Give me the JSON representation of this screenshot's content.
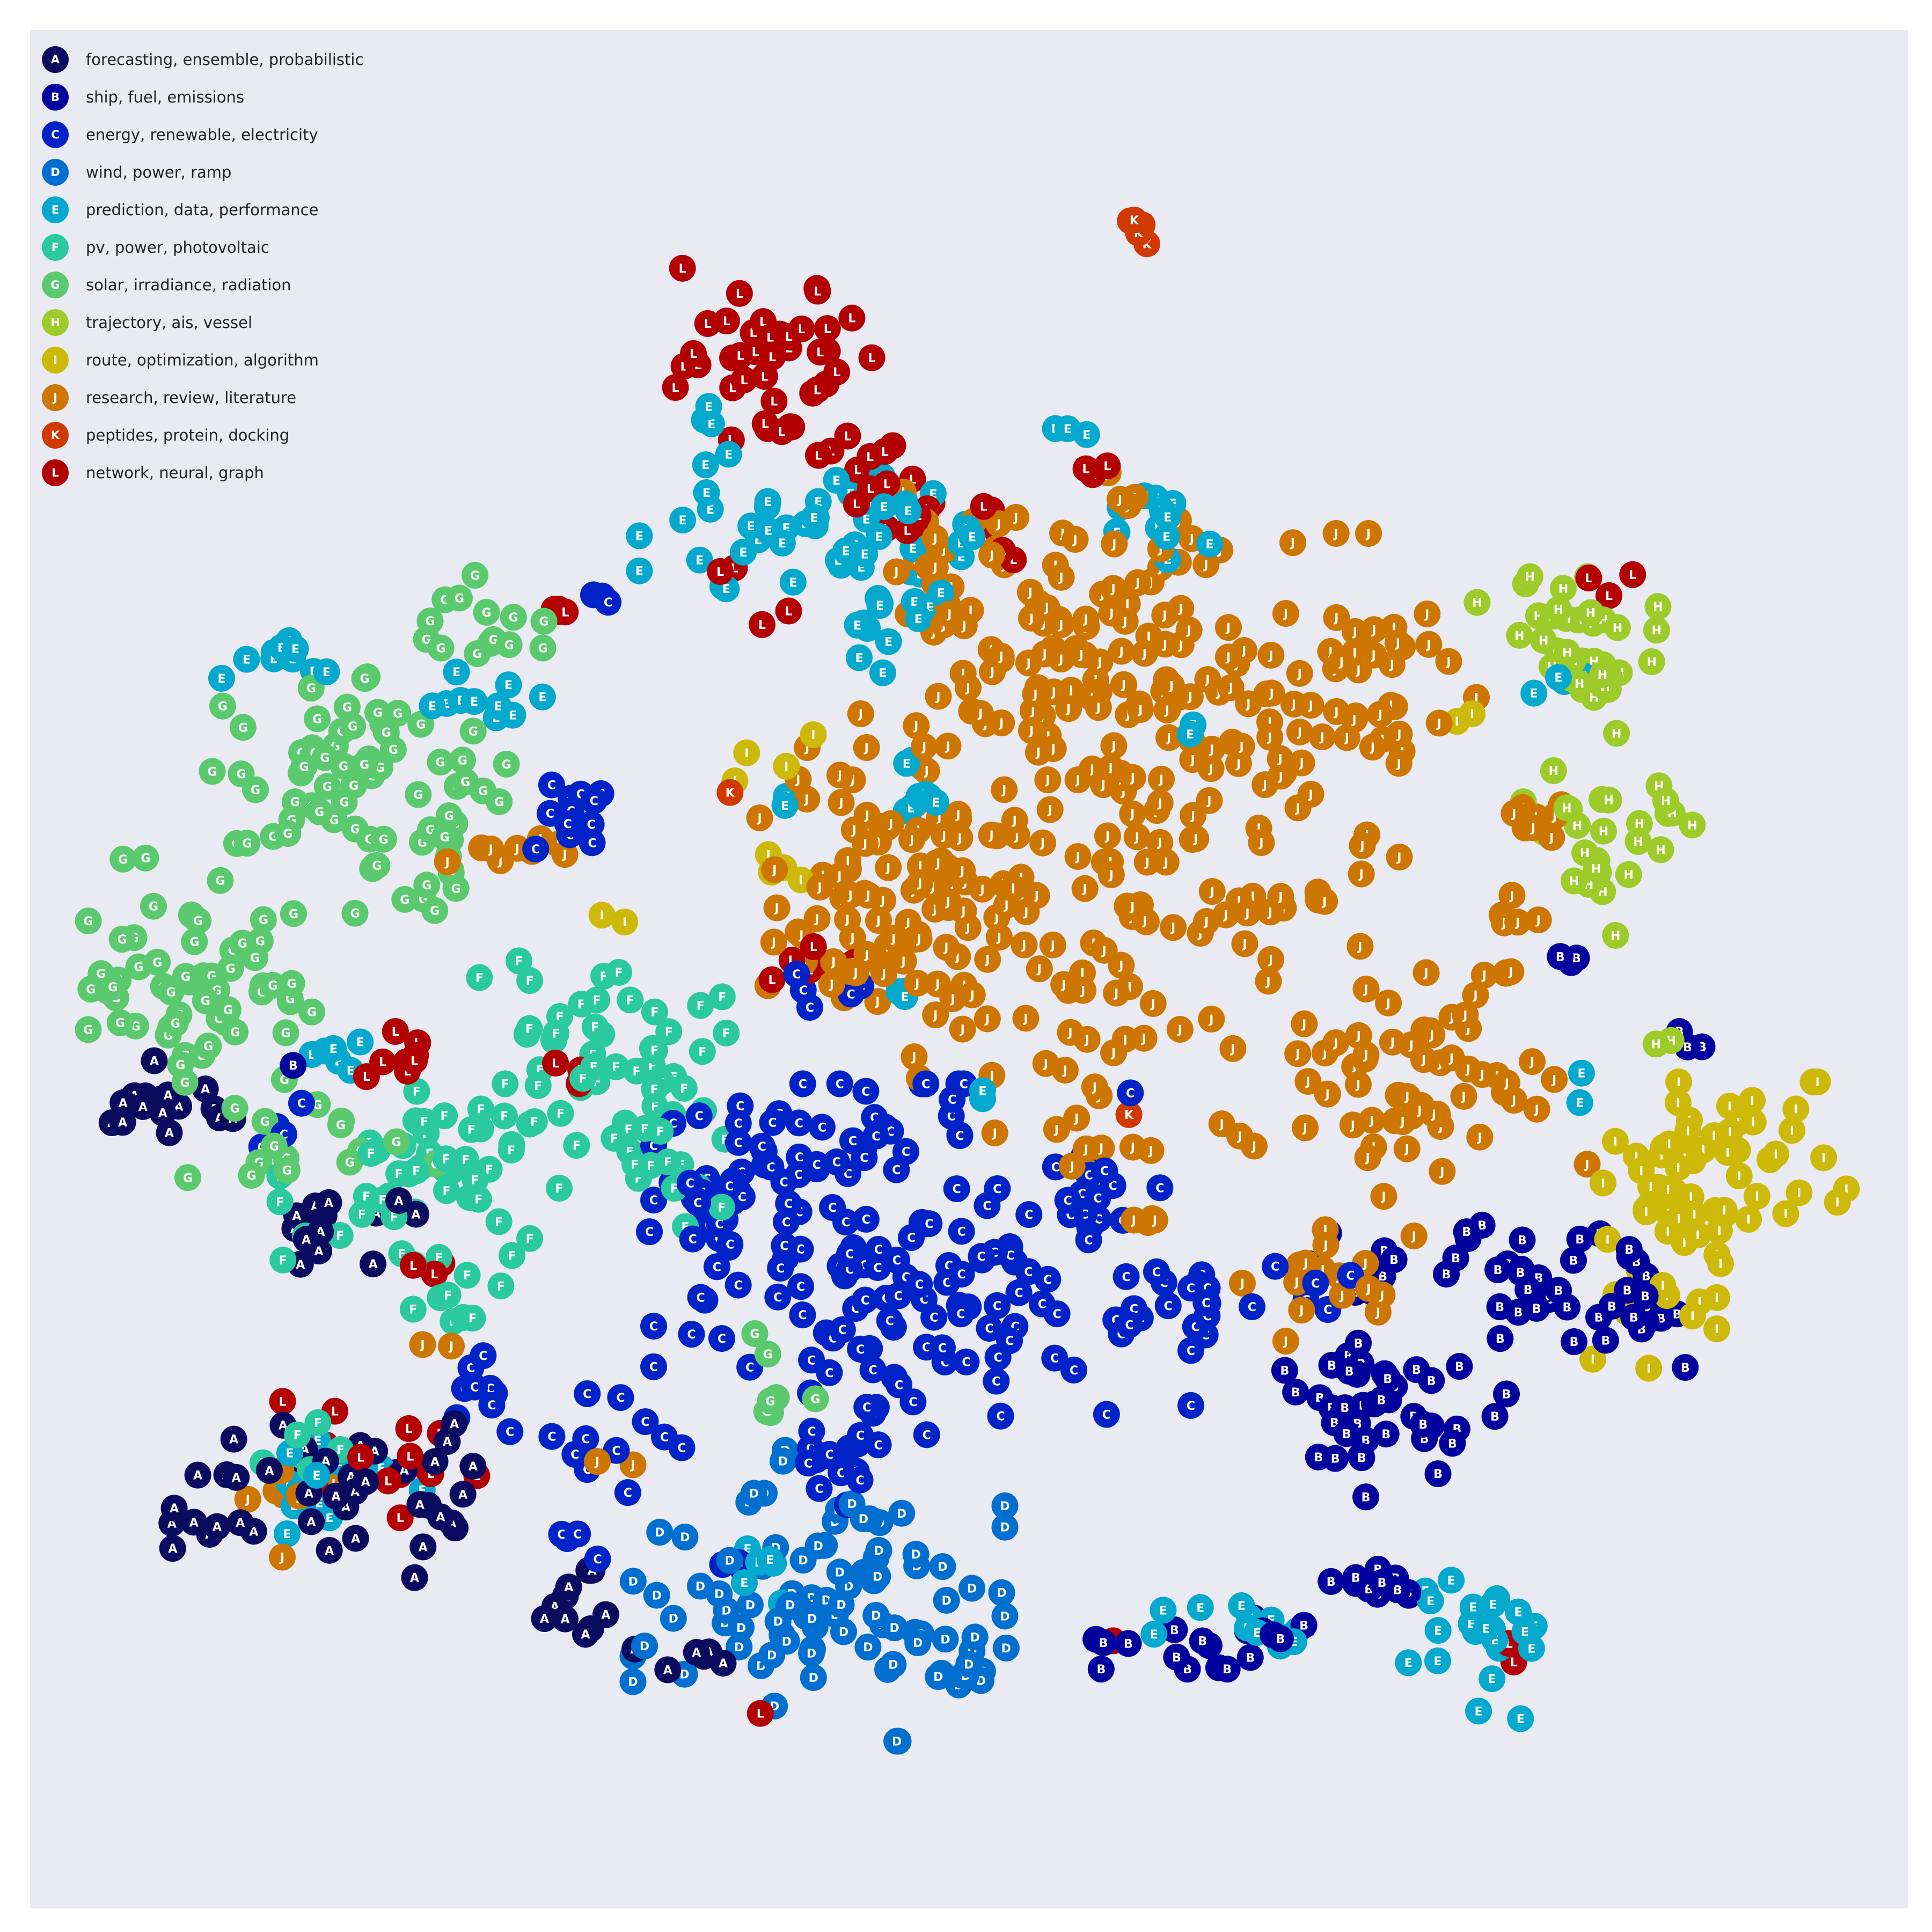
{
  "chart_data": {
    "type": "scatter",
    "title": "",
    "xlabel": "",
    "ylabel": "",
    "grid": false,
    "axes_visible": false,
    "legend_position": "top-left",
    "xlim": [
      0,
      100
    ],
    "ylim": [
      0,
      100
    ],
    "series": [
      {
        "letter": "A",
        "name": "forecasting, ensemble, probabilistic",
        "color": "#0a0a5e",
        "clusters": [
          [
            7.5,
            43.0,
            1.5,
            1.3,
            16
          ],
          [
            16.5,
            36.5,
            2.8,
            1.2,
            14
          ],
          [
            14.0,
            22.0,
            4.0,
            2.2,
            30
          ],
          [
            21.0,
            22.5,
            1.8,
            1.5,
            14
          ],
          [
            29.0,
            15.8,
            1.8,
            1.0,
            10
          ],
          [
            34.5,
            14.0,
            1.5,
            0.8,
            6
          ]
        ]
      },
      {
        "letter": "B",
        "name": "ship, fuel, emissions",
        "color": "#00009d",
        "clusters": [
          [
            72.0,
            27.0,
            3.0,
            2.5,
            40
          ],
          [
            80.0,
            34.0,
            2.5,
            1.8,
            22
          ],
          [
            71.5,
            17.5,
            1.5,
            1.0,
            12
          ],
          [
            62.5,
            14.5,
            3.5,
            0.8,
            18
          ],
          [
            85.5,
            31.0,
            1.5,
            1.0,
            12
          ],
          [
            71.0,
            35.0,
            2.0,
            1.0,
            8
          ],
          [
            82.0,
            50.0,
            0.5,
            0.4,
            3
          ],
          [
            88.5,
            46.0,
            0.5,
            0.5,
            3
          ],
          [
            85.5,
            34.5,
            0.5,
            0.8,
            4
          ],
          [
            14.5,
            45.0,
            0.4,
            0.4,
            1
          ]
        ]
      },
      {
        "letter": "C",
        "name": "energy, renewable, electricity",
        "color": "#0023c8",
        "clusters": [
          [
            47.5,
            34.0,
            6.5,
            4.5,
            140
          ],
          [
            39.0,
            38.5,
            3.0,
            2.0,
            20
          ],
          [
            35.0,
            37.0,
            2.0,
            1.5,
            12
          ],
          [
            29.0,
            58.0,
            1.2,
            1.3,
            12
          ],
          [
            23.5,
            27.5,
            1.3,
            1.0,
            10
          ],
          [
            43.5,
            25.0,
            1.2,
            1.6,
            14
          ],
          [
            30.5,
            23.0,
            2.0,
            2.0,
            14
          ],
          [
            61.0,
            32.5,
            2.0,
            1.5,
            16
          ],
          [
            67.0,
            33.0,
            1.5,
            1.0,
            8
          ],
          [
            44.0,
            41.5,
            2.5,
            1.0,
            10
          ],
          [
            56.0,
            37.0,
            1.5,
            1.0,
            8
          ],
          [
            42.0,
            49.0,
            1.5,
            1.0,
            5
          ],
          [
            13.0,
            41.5,
            1.0,
            1.0,
            4
          ],
          [
            30.5,
            70.0,
            0.5,
            0.4,
            3
          ],
          [
            37.5,
            17.5,
            0.5,
            0.8,
            3
          ]
        ]
      },
      {
        "letter": "D",
        "name": "wind, power, ramp",
        "color": "#006fd0",
        "clusters": [
          [
            42.0,
            15.5,
            4.5,
            3.0,
            70
          ],
          [
            44.0,
            20.0,
            1.5,
            2.0,
            14
          ],
          [
            49.0,
            14.0,
            2.0,
            1.0,
            10
          ],
          [
            40.0,
            24.0,
            0.5,
            0.4,
            2
          ]
        ]
      },
      {
        "letter": "E",
        "name": "prediction, data, performance",
        "color": "#04a9cd",
        "clusters": [
          [
            45.0,
            71.0,
            2.0,
            2.5,
            30
          ],
          [
            37.5,
            73.5,
            2.3,
            2.0,
            24
          ],
          [
            47.0,
            60.5,
            1.2,
            1.5,
            10
          ],
          [
            59.5,
            74.0,
            1.5,
            1.0,
            12
          ],
          [
            77.5,
            14.5,
            2.0,
            2.0,
            22
          ],
          [
            64.5,
            14.5,
            2.5,
            1.0,
            12
          ],
          [
            16.5,
            22.5,
            2.5,
            1.5,
            14
          ],
          [
            24.5,
            64.5,
            1.5,
            0.8,
            10
          ],
          [
            13.5,
            66.5,
            1.5,
            0.8,
            10
          ],
          [
            35.5,
            79.5,
            0.6,
            0.6,
            3
          ],
          [
            49.5,
            73.5,
            1.0,
            0.7,
            5
          ],
          [
            16.0,
            45.5,
            1.5,
            0.5,
            6
          ],
          [
            81.5,
            65.0,
            0.8,
            0.8,
            4
          ],
          [
            46.5,
            49.0,
            0.5,
            0.5,
            3
          ],
          [
            51.0,
            43.0,
            0.5,
            0.5,
            2
          ],
          [
            47.0,
            75.0,
            1.0,
            0.5,
            4
          ],
          [
            38.5,
            18.0,
            1.5,
            1.0,
            6
          ],
          [
            55.0,
            79.0,
            0.8,
            0.4,
            3
          ],
          [
            62.0,
            63.0,
            0.5,
            0.4,
            2
          ],
          [
            82.0,
            44.0,
            0.5,
            0.5,
            2
          ],
          [
            40.5,
            58.5,
            0.5,
            0.4,
            2
          ]
        ]
      },
      {
        "letter": "F",
        "name": "pv, power, photovoltaic",
        "color": "#2bc9a0",
        "clusters": [
          [
            21.0,
            38.5,
            3.5,
            3.0,
            50
          ],
          [
            30.5,
            44.0,
            4.0,
            3.5,
            60
          ],
          [
            33.0,
            41.0,
            1.0,
            1.0,
            6
          ],
          [
            23.0,
            32.0,
            0.5,
            0.8,
            3
          ],
          [
            15.0,
            24.5,
            1.5,
            0.8,
            6
          ]
        ]
      },
      {
        "letter": "G",
        "name": "solar, irradiance, radiation",
        "color": "#5bc96e",
        "clusters": [
          [
            8.5,
            50.5,
            4.0,
            2.5,
            50
          ],
          [
            18.5,
            60.5,
            4.0,
            3.0,
            60
          ],
          [
            21.0,
            56.0,
            1.2,
            1.5,
            14
          ],
          [
            24.5,
            68.5,
            2.0,
            1.2,
            12
          ],
          [
            15.0,
            41.0,
            3.0,
            1.2,
            14
          ],
          [
            10.0,
            47.0,
            3.0,
            2.0,
            14
          ],
          [
            40.0,
            27.0,
            1.0,
            0.5,
            6
          ],
          [
            14.5,
            57.5,
            0.5,
            0.4,
            2
          ],
          [
            38.5,
            29.5,
            0.5,
            0.5,
            2
          ]
        ]
      },
      {
        "letter": "H",
        "name": "trajectory, ais, vessel",
        "color": "#9ccb2a",
        "clusters": [
          [
            82.5,
            66.5,
            2.5,
            2.0,
            30
          ],
          [
            85.0,
            58.0,
            2.5,
            1.5,
            20
          ],
          [
            81.0,
            68.5,
            1.8,
            1.0,
            8
          ],
          [
            83.0,
            54.0,
            1.0,
            1.0,
            6
          ],
          [
            87.0,
            46.0,
            0.5,
            0.4,
            2
          ]
        ]
      },
      {
        "letter": "I",
        "name": "route, optimization, algorithm",
        "color": "#cdb909",
        "clusters": [
          [
            89.0,
            38.5,
            3.5,
            2.5,
            60
          ],
          [
            86.5,
            32.0,
            1.5,
            1.5,
            12
          ],
          [
            40.5,
            56.0,
            1.0,
            0.8,
            4
          ],
          [
            40.5,
            61.5,
            1.5,
            1.0,
            4
          ],
          [
            76.0,
            63.5,
            0.5,
            0.4,
            2
          ],
          [
            31.5,
            52.5,
            0.5,
            0.5,
            2
          ],
          [
            88.5,
            43.0,
            0.5,
            0.5,
            1
          ]
        ]
      },
      {
        "letter": "J",
        "name": "research, review, literature",
        "color": "#cd7602",
        "clusters": [
          [
            55.0,
            67.0,
            4.0,
            4.5,
            90
          ],
          [
            63.0,
            60.0,
            4.5,
            6.0,
            110
          ],
          [
            71.5,
            66.0,
            2.5,
            2.5,
            26
          ],
          [
            73.0,
            43.5,
            4.5,
            3.5,
            60
          ],
          [
            56.0,
            48.0,
            2.5,
            3.5,
            30
          ],
          [
            48.5,
            53.0,
            3.5,
            4.0,
            40
          ],
          [
            45.5,
            57.0,
            3.5,
            3.0,
            30
          ],
          [
            43.5,
            52.5,
            3.5,
            2.0,
            24
          ],
          [
            47.5,
            71.5,
            1.5,
            2.0,
            14
          ],
          [
            68.5,
            33.5,
            2.5,
            1.5,
            14
          ],
          [
            79.0,
            51.0,
            1.5,
            2.0,
            12
          ],
          [
            80.0,
            58.0,
            1.5,
            1.2,
            8
          ],
          [
            25.0,
            56.0,
            1.5,
            1.0,
            6
          ],
          [
            14.5,
            22.0,
            2.0,
            1.5,
            8
          ],
          [
            57.0,
            40.5,
            1.5,
            1.0,
            8
          ],
          [
            28.0,
            57.0,
            0.6,
            0.5,
            3
          ],
          [
            41.5,
            59.5,
            0.5,
            0.4,
            2
          ],
          [
            22.0,
            30.0,
            0.5,
            0.4,
            2
          ],
          [
            60.5,
            36.5,
            1.0,
            0.5,
            4
          ],
          [
            31.0,
            24.0,
            0.5,
            0.4,
            2
          ],
          [
            49.0,
            54.0,
            2.0,
            3.0,
            14
          ]
        ]
      },
      {
        "letter": "K",
        "name": "peptides, protein, docking",
        "color": "#d03a02",
        "clusters": [
          [
            59.0,
            89.5,
            0.4,
            0.4,
            6
          ],
          [
            37.0,
            59.5,
            0.2,
            0.2,
            1
          ],
          [
            58.5,
            42.5,
            0.2,
            0.2,
            1
          ]
        ]
      },
      {
        "letter": "L",
        "name": "network, neural, graph",
        "color": "#b30003",
        "clusters": [
          [
            39.0,
            82.0,
            3.0,
            2.5,
            40
          ],
          [
            44.5,
            77.0,
            1.5,
            1.5,
            10
          ],
          [
            46.5,
            74.0,
            1.5,
            1.5,
            8
          ],
          [
            19.5,
            24.0,
            3.5,
            1.5,
            14
          ],
          [
            21.0,
            45.5,
            2.0,
            0.8,
            8
          ],
          [
            41.5,
            50.0,
            1.5,
            0.8,
            6
          ],
          [
            28.0,
            69.5,
            0.6,
            0.4,
            4
          ],
          [
            57.0,
            76.5,
            0.5,
            0.4,
            3
          ],
          [
            84.0,
            70.5,
            0.6,
            0.4,
            3
          ],
          [
            40.0,
            69.0,
            0.5,
            0.4,
            2
          ],
          [
            36.5,
            71.0,
            0.5,
            0.4,
            2
          ],
          [
            51.0,
            74.0,
            0.5,
            0.4,
            3
          ],
          [
            52.0,
            72.0,
            0.4,
            0.4,
            2
          ],
          [
            21.5,
            34.0,
            0.5,
            0.5,
            3
          ],
          [
            29.0,
            45.0,
            0.5,
            0.5,
            3
          ],
          [
            57.5,
            15.0,
            0.4,
            0.4,
            1
          ],
          [
            38.5,
            9.5,
            0.4,
            0.4,
            1
          ],
          [
            78.5,
            13.5,
            0.4,
            0.4,
            2
          ]
        ]
      }
    ]
  }
}
